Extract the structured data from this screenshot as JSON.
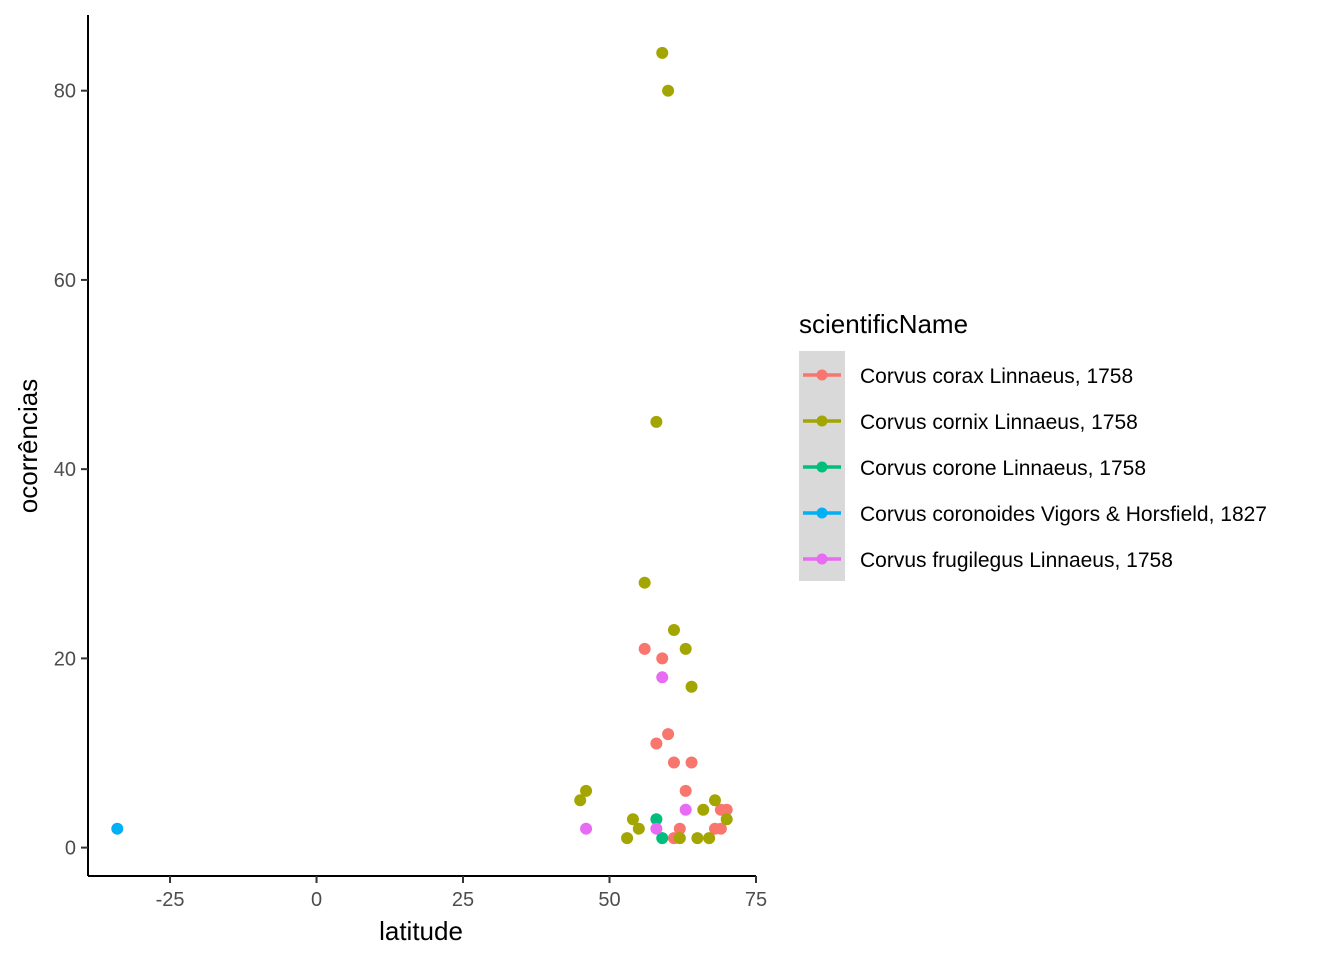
{
  "chart_data": {
    "type": "scatter",
    "xlabel": "latitude",
    "ylabel": "ocorrências",
    "xlim": [
      -39,
      75
    ],
    "ylim": [
      -3,
      88
    ],
    "x_ticks": [
      -25,
      0,
      25,
      50,
      75
    ],
    "x_tick_labels": [
      "-25",
      "0",
      "25",
      "50",
      "75"
    ],
    "y_ticks": [
      0,
      20,
      40,
      60,
      80
    ],
    "y_tick_labels": [
      "0",
      "20",
      "40",
      "60",
      "80"
    ],
    "grid": false,
    "legend": {
      "title": "scientificName",
      "placement": "right"
    },
    "series": [
      {
        "name": "Corvus corax Linnaeus, 1758",
        "color": "#F8766D",
        "points": [
          [
            56,
            21
          ],
          [
            59,
            20
          ],
          [
            60,
            12
          ],
          [
            58,
            11
          ],
          [
            61,
            9
          ],
          [
            64,
            9
          ],
          [
            63,
            6
          ],
          [
            70,
            4
          ],
          [
            69,
            4
          ],
          [
            62,
            2
          ],
          [
            68,
            2
          ],
          [
            69,
            2
          ],
          [
            61,
            1
          ]
        ]
      },
      {
        "name": "Corvus cornix Linnaeus, 1758",
        "color": "#A3A500",
        "points": [
          [
            59,
            84
          ],
          [
            60,
            80
          ],
          [
            58,
            45
          ],
          [
            56,
            28
          ],
          [
            61,
            23
          ],
          [
            63,
            21
          ],
          [
            64,
            17
          ],
          [
            46,
            6
          ],
          [
            45,
            5
          ],
          [
            68,
            5
          ],
          [
            66,
            4
          ],
          [
            54,
            3
          ],
          [
            70,
            3
          ],
          [
            55,
            2
          ],
          [
            53,
            1
          ],
          [
            62,
            1
          ],
          [
            65,
            1
          ],
          [
            67,
            1
          ]
        ]
      },
      {
        "name": "Corvus corone Linnaeus, 1758",
        "color": "#00BF7D",
        "points": [
          [
            58,
            3
          ],
          [
            59,
            1
          ]
        ]
      },
      {
        "name": "Corvus coronoides Vigors & Horsfield, 1827",
        "color": "#00B0F6",
        "points": [
          [
            -34,
            2
          ]
        ]
      },
      {
        "name": "Corvus frugilegus Linnaeus, 1758",
        "color": "#E76BF3",
        "points": [
          [
            59,
            18
          ],
          [
            63,
            4
          ],
          [
            46,
            2
          ],
          [
            58,
            2
          ]
        ]
      }
    ]
  }
}
